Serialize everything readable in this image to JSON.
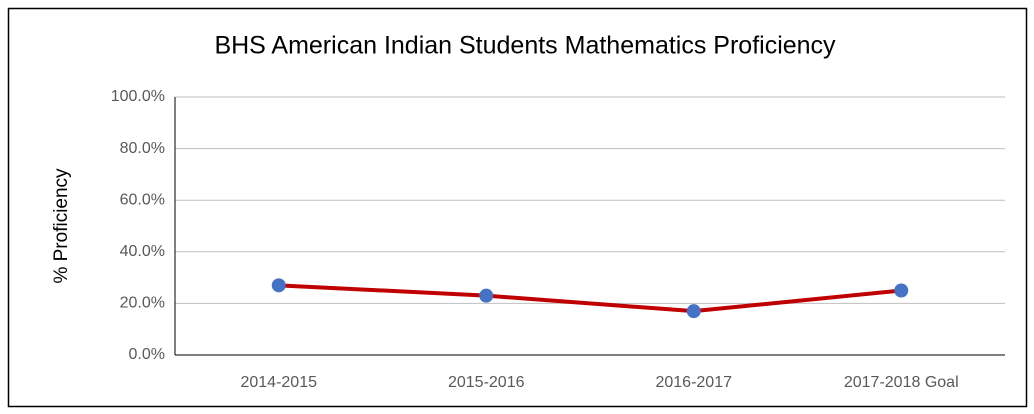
{
  "chart_data": {
    "type": "line",
    "title": "BHS American Indian Students Mathematics Proficiency",
    "y_label": "% Proficiency",
    "categories": [
      "2014-2015",
      "2015-2016",
      "2016-2017",
      "2017-2018 Goal"
    ],
    "series": [
      {
        "name": "BHS American Indian Students",
        "color": "#c00000",
        "marker_color": "#4472c4",
        "values": [
          27,
          23,
          17,
          25
        ]
      }
    ],
    "ylim": [
      0,
      100
    ],
    "yticks": [
      {
        "value": 0,
        "label": "0.0%"
      },
      {
        "value": 20,
        "label": "20.0%"
      },
      {
        "value": 40,
        "label": "40.0%"
      },
      {
        "value": 60,
        "label": "60.0%"
      },
      {
        "value": 80,
        "label": "80.0%"
      },
      {
        "value": 100,
        "label": "100.0%"
      }
    ],
    "grid": true,
    "legend": false
  }
}
